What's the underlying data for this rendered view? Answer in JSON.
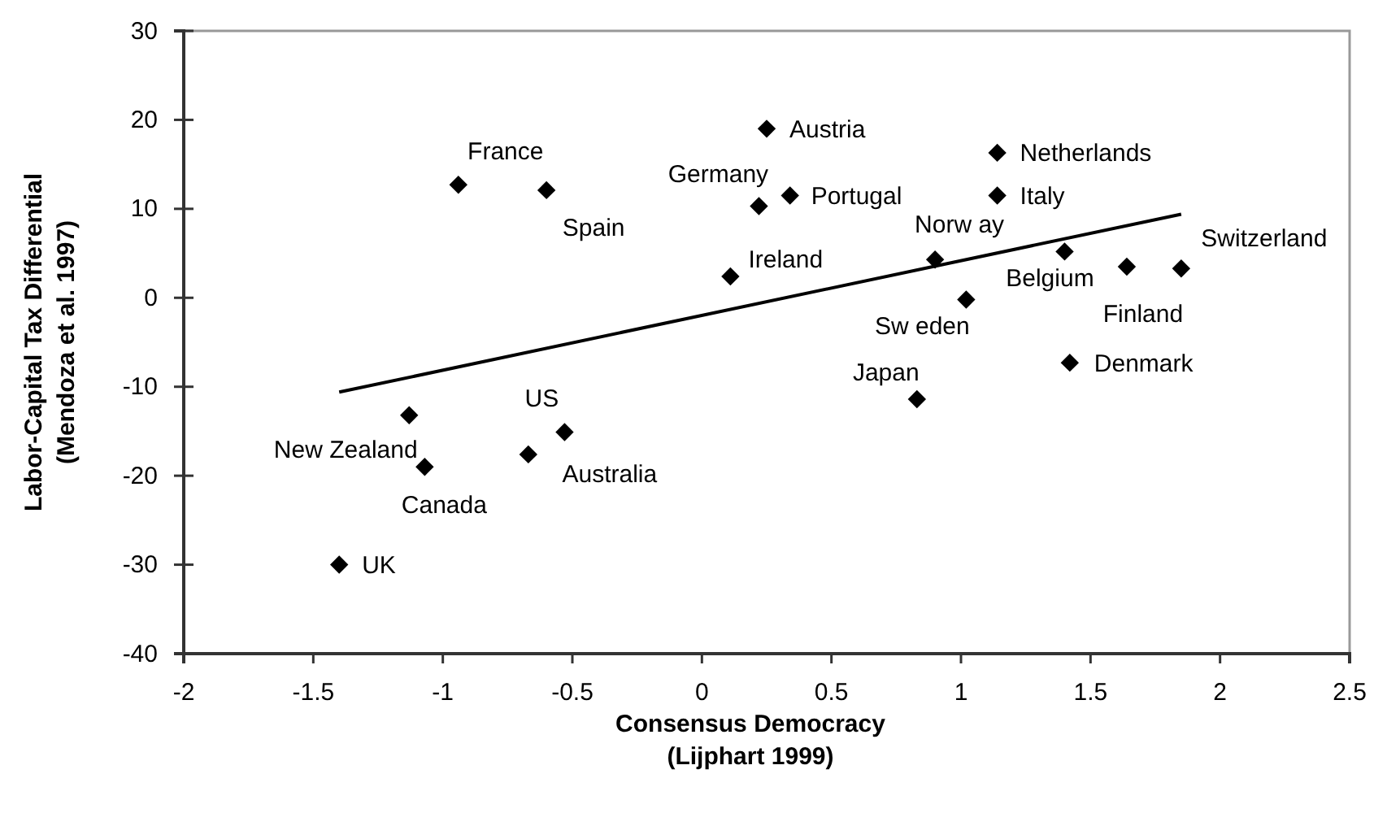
{
  "chart_data": {
    "type": "scatter",
    "xlabel": "Consensus Democracy\n(Lijphart 1999)",
    "ylabel": "Labor-Capital Tax Differential\n(Mendoza et al. 1997)",
    "xlim": [
      -2,
      2.5
    ],
    "xticks": [
      -2,
      -1.5,
      -1,
      -0.5,
      0,
      0.5,
      1,
      1.5,
      2,
      2.5
    ],
    "ylim": [
      -40,
      30
    ],
    "yticks": [
      -40,
      -30,
      -20,
      -10,
      0,
      10,
      20,
      30
    ],
    "grid": false,
    "marker": "diamond",
    "series": [
      {
        "color": "#000000",
        "x": [
          -0.94,
          -0.6,
          0.22,
          0.25,
          0.34,
          0.11,
          1.14,
          1.14,
          0.9,
          1.02,
          1.4,
          1.64,
          1.85,
          1.42,
          0.83,
          -1.13,
          -1.07,
          -0.67,
          -0.53,
          -1.4
        ],
        "values": [
          12.7,
          12.1,
          10.3,
          19.0,
          11.5,
          2.4,
          16.3,
          11.5,
          4.3,
          -0.2,
          5.2,
          3.5,
          3.3,
          -7.3,
          -11.4,
          -13.2,
          -19.0,
          -17.6,
          -15.1,
          -30.0
        ]
      },
      {
        "type": "line",
        "color": "#000000",
        "marker": "none",
        "line_style": "solid",
        "x": [
          -1.4,
          1.85
        ],
        "values": [
          -10.6,
          9.4
        ]
      }
    ],
    "annotations": [
      {
        "text": "France",
        "x": -0.94,
        "y": 12.7
      },
      {
        "text": "Spain",
        "x": -0.6,
        "y": 12.1
      },
      {
        "text": "Germany",
        "x": 0.22,
        "y": 10.3
      },
      {
        "text": "Austria",
        "x": 0.25,
        "y": 19.0
      },
      {
        "text": "Portugal",
        "x": 0.34,
        "y": 11.5
      },
      {
        "text": "Ireland",
        "x": 0.11,
        "y": 2.4
      },
      {
        "text": "Netherlands",
        "x": 1.14,
        "y": 16.3
      },
      {
        "text": "Italy",
        "x": 1.14,
        "y": 11.5
      },
      {
        "text": "Norw ay",
        "x": 0.9,
        "y": 4.3
      },
      {
        "text": "Sw eden",
        "x": 1.02,
        "y": -0.2
      },
      {
        "text": "Belgium",
        "x": 1.4,
        "y": 5.2
      },
      {
        "text": "Finland",
        "x": 1.64,
        "y": 3.5
      },
      {
        "text": "Switzerland",
        "x": 1.85,
        "y": 3.3
      },
      {
        "text": "Denmark",
        "x": 1.42,
        "y": -7.3
      },
      {
        "text": "Japan",
        "x": 0.83,
        "y": -11.4
      },
      {
        "text": "New Zealand",
        "x": -1.13,
        "y": -13.2
      },
      {
        "text": "Canada",
        "x": -1.07,
        "y": -19.0
      },
      {
        "text": "Australia",
        "x": -0.67,
        "y": -17.6
      },
      {
        "text": "US",
        "x": -0.53,
        "y": -15.1
      },
      {
        "text": "UK",
        "x": -1.4,
        "y": -30.0
      }
    ]
  }
}
